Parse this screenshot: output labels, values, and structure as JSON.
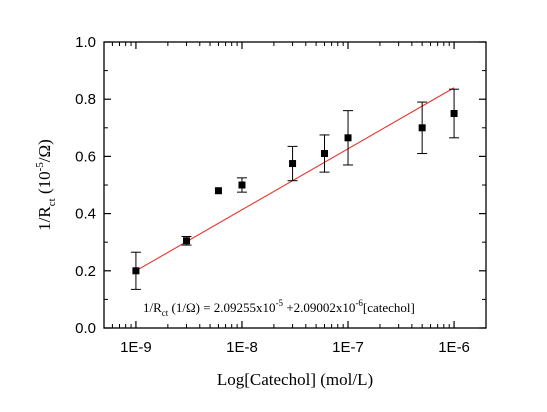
{
  "chart_data": {
    "type": "scatter",
    "title": "",
    "xlabel": "Log[Catechol] (mol/L)",
    "ylabel_parts": {
      "a": "1/R",
      "b": "ct",
      "c": " (10",
      "d": "-5",
      "e": "/Ω)"
    },
    "x_scale": "log",
    "xlim": [
      5e-10,
      2e-06
    ],
    "ylim": [
      0.0,
      1.0
    ],
    "x_ticks": [
      1e-09,
      1e-08,
      1e-07,
      1e-06
    ],
    "x_tick_labels": [
      "1E-9",
      "1E-8",
      "1E-7",
      "1E-6"
    ],
    "y_ticks": [
      0.0,
      0.2,
      0.4,
      0.6,
      0.8,
      1.0
    ],
    "y_tick_labels": [
      "0.0",
      "0.2",
      "0.4",
      "0.6",
      "0.8",
      "1.0"
    ],
    "grid": false,
    "legend": "none",
    "series": [
      {
        "x": [
          1e-09,
          3e-09,
          6e-09,
          1e-08,
          3e-08,
          6e-08,
          1e-07,
          5e-07,
          1e-06
        ],
        "y": [
          0.2,
          0.305,
          0.48,
          0.5,
          0.575,
          0.61,
          0.665,
          0.7,
          0.75
        ],
        "error": [
          0.065,
          0.015,
          0.0,
          0.025,
          0.06,
          0.065,
          0.095,
          0.09,
          0.085
        ],
        "marker": "square",
        "color": "#000000"
      }
    ],
    "fit_line": {
      "x": [
        1e-09,
        1e-06
      ],
      "y": [
        0.2,
        0.84
      ],
      "color": "#e8322b"
    },
    "annotation": {
      "p1": "1/R",
      "p2": "ct",
      "p3": " (1/Ω) = 2.09255x10",
      "p4": "-5",
      "p5": " +2.09002x10",
      "p6": "-6",
      "p7": "[catechol]"
    }
  }
}
